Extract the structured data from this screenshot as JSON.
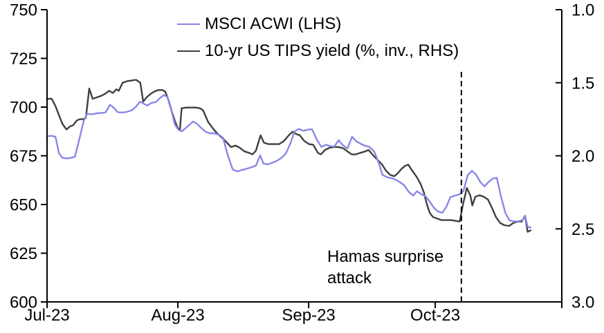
{
  "chart_data": {
    "type": "line",
    "title": "",
    "grid": false,
    "legend_position": "top-center",
    "x_axis": {
      "unit": "days since 1 Jul 2023",
      "range": [
        0,
        122
      ],
      "ticks": [
        {
          "day": 0,
          "label": "Jul-23"
        },
        {
          "day": 31,
          "label": "Aug-23"
        },
        {
          "day": 62,
          "label": "Sep-23"
        },
        {
          "day": 92,
          "label": "Oct-23"
        },
        {
          "day": 122,
          "label": ""
        }
      ]
    },
    "left_axis": {
      "range": [
        600,
        750
      ],
      "ticks": [
        750,
        725,
        700,
        675,
        650,
        625,
        600
      ]
    },
    "right_axis": {
      "range": [
        1.0,
        3.0
      ],
      "inverted": true,
      "ticks": [
        "1.0",
        "1.5",
        "2.0",
        "2.5",
        "3.0"
      ]
    },
    "series": [
      {
        "name": "MSCI ACWI (LHS)",
        "axis": "left",
        "color": "#8787e8",
        "points": [
          [
            0,
            685
          ],
          [
            1,
            685.3
          ],
          [
            2,
            684.8
          ],
          [
            2.8,
            676.5
          ],
          [
            3.6,
            674
          ],
          [
            4.8,
            673.6
          ],
          [
            5.7,
            674
          ],
          [
            6.6,
            674.5
          ],
          [
            7.7,
            684
          ],
          [
            8.7,
            693
          ],
          [
            9.5,
            696.5
          ],
          [
            10.7,
            696.3
          ],
          [
            11.8,
            696.8
          ],
          [
            13,
            697
          ],
          [
            13.9,
            697.3
          ],
          [
            14.9,
            701.2
          ],
          [
            15.9,
            699.5
          ],
          [
            16.7,
            697.4
          ],
          [
            17.9,
            697.2
          ],
          [
            19,
            697.6
          ],
          [
            20.2,
            698.5
          ],
          [
            21.2,
            700.5
          ],
          [
            22,
            702.8
          ],
          [
            23,
            701.6
          ],
          [
            23.8,
            700.8
          ],
          [
            24.8,
            702.2
          ],
          [
            25.8,
            702.6
          ],
          [
            26.7,
            704.5
          ],
          [
            27.7,
            706.2
          ],
          [
            28.5,
            705.2
          ],
          [
            29.5,
            698
          ],
          [
            30.3,
            691
          ],
          [
            31.2,
            688.2
          ],
          [
            32,
            687.6
          ],
          [
            33,
            689.5
          ],
          [
            33.8,
            691
          ],
          [
            34.6,
            692.6
          ],
          [
            35.6,
            691.3
          ],
          [
            36.6,
            689.2
          ],
          [
            37.6,
            687.3
          ],
          [
            38.5,
            686.6
          ],
          [
            39.7,
            686.5
          ],
          [
            40.7,
            685.8
          ],
          [
            41.7,
            684.3
          ],
          [
            42.8,
            675.5
          ],
          [
            44,
            668
          ],
          [
            45.1,
            667
          ],
          [
            46.3,
            667.8
          ],
          [
            47.4,
            668.4
          ],
          [
            48.6,
            669.2
          ],
          [
            49.5,
            670
          ],
          [
            50.5,
            675.2
          ],
          [
            51.3,
            671
          ],
          [
            52.3,
            670.6
          ],
          [
            53.5,
            671.5
          ],
          [
            54.6,
            672.6
          ],
          [
            55.6,
            674
          ],
          [
            56.6,
            676.2
          ],
          [
            57.6,
            681
          ],
          [
            58.7,
            687.6
          ],
          [
            59.7,
            688.8
          ],
          [
            60.7,
            687.8
          ],
          [
            61.8,
            688.4
          ],
          [
            62.8,
            688.6
          ],
          [
            64,
            683
          ],
          [
            65,
            679.6
          ],
          [
            66.1,
            680.6
          ],
          [
            67.1,
            680
          ],
          [
            68.1,
            679.8
          ],
          [
            69.1,
            683
          ],
          [
            70.2,
            680.2
          ],
          [
            71.2,
            678.8
          ],
          [
            72.3,
            684.8
          ],
          [
            73.3,
            682.4
          ],
          [
            74.5,
            681
          ],
          [
            75.4,
            680.1
          ],
          [
            76.4,
            679.6
          ],
          [
            77.6,
            677
          ],
          [
            78.6,
            671.5
          ],
          [
            79.5,
            665.2
          ],
          [
            80.7,
            663.9
          ],
          [
            81.7,
            663.5
          ],
          [
            82.7,
            662.6
          ],
          [
            83.6,
            661.5
          ],
          [
            84.6,
            660
          ],
          [
            85.8,
            656.3
          ],
          [
            86.8,
            654.6
          ],
          [
            87.7,
            656.8
          ],
          [
            88.7,
            655.3
          ],
          [
            89.7,
            654.3
          ],
          [
            90.7,
            651.5
          ],
          [
            91.7,
            648.3
          ],
          [
            92.7,
            646.3
          ],
          [
            93.7,
            645.8
          ],
          [
            94.6,
            648.6
          ],
          [
            95.6,
            653.8
          ],
          [
            96.8,
            654.6
          ],
          [
            97.7,
            655.2
          ],
          [
            98.7,
            657
          ],
          [
            99.7,
            665
          ],
          [
            100.7,
            667.3
          ],
          [
            101.7,
            665.3
          ],
          [
            102.7,
            661.5
          ],
          [
            103.7,
            659.3
          ],
          [
            104.6,
            661.5
          ],
          [
            105.6,
            663.3
          ],
          [
            106.6,
            663.7
          ],
          [
            107.6,
            654
          ],
          [
            108.6,
            645.8
          ],
          [
            109.6,
            641.8
          ],
          [
            110.7,
            641.3
          ],
          [
            111.7,
            641.4
          ],
          [
            112.7,
            642
          ],
          [
            113.3,
            644.3
          ],
          [
            113.9,
            638.5
          ],
          [
            114.6,
            638.2
          ]
        ]
      },
      {
        "name": "10-yr US TIPS yield (%, inv., RHS)",
        "axis": "right",
        "color": "#3f3f3f",
        "points": [
          [
            0,
            1.61
          ],
          [
            1.1,
            1.61
          ],
          [
            2,
            1.66
          ],
          [
            2.8,
            1.72
          ],
          [
            3.6,
            1.78
          ],
          [
            4.6,
            1.82
          ],
          [
            5.4,
            1.8
          ],
          [
            6.2,
            1.79
          ],
          [
            7,
            1.76
          ],
          [
            7.7,
            1.75
          ],
          [
            8.5,
            1.75
          ],
          [
            9.2,
            1.74
          ],
          [
            10,
            1.54
          ],
          [
            10.8,
            1.61
          ],
          [
            11.8,
            1.6
          ],
          [
            12.8,
            1.59
          ],
          [
            13.8,
            1.575
          ],
          [
            14.7,
            1.555
          ],
          [
            15.6,
            1.57
          ],
          [
            16.4,
            1.545
          ],
          [
            17,
            1.555
          ],
          [
            17.9,
            1.5
          ],
          [
            18.9,
            1.49
          ],
          [
            20,
            1.485
          ],
          [
            21.1,
            1.48
          ],
          [
            22.1,
            1.5
          ],
          [
            22.8,
            1.63
          ],
          [
            23.6,
            1.6
          ],
          [
            24.6,
            1.575
          ],
          [
            25.5,
            1.56
          ],
          [
            26.4,
            1.55
          ],
          [
            27.3,
            1.55
          ],
          [
            28,
            1.56
          ],
          [
            28.8,
            1.62
          ],
          [
            29.6,
            1.7
          ],
          [
            30.4,
            1.77
          ],
          [
            31,
            1.81
          ],
          [
            31.5,
            1.82
          ],
          [
            31.9,
            1.675
          ],
          [
            33,
            1.67
          ],
          [
            34.2,
            1.67
          ],
          [
            35.3,
            1.67
          ],
          [
            36.3,
            1.675
          ],
          [
            37,
            1.69
          ],
          [
            37.6,
            1.73
          ],
          [
            38.2,
            1.77
          ],
          [
            39,
            1.8
          ],
          [
            39.8,
            1.83
          ],
          [
            40.8,
            1.86
          ],
          [
            41.8,
            1.885
          ],
          [
            42.8,
            1.915
          ],
          [
            43.6,
            1.94
          ],
          [
            44.7,
            1.93
          ],
          [
            45.7,
            1.945
          ],
          [
            46.8,
            1.97
          ],
          [
            47.9,
            1.98
          ],
          [
            48.7,
            1.99
          ],
          [
            49.5,
            1.965
          ],
          [
            50.6,
            1.86
          ],
          [
            51.4,
            1.91
          ],
          [
            52.4,
            1.92
          ],
          [
            53.6,
            1.92
          ],
          [
            55,
            1.92
          ],
          [
            56.1,
            1.9
          ],
          [
            57.3,
            1.86
          ],
          [
            58.2,
            1.835
          ],
          [
            59,
            1.85
          ],
          [
            59.9,
            1.86
          ],
          [
            61,
            1.9
          ],
          [
            62.1,
            1.92
          ],
          [
            63.1,
            1.925
          ],
          [
            64.2,
            1.98
          ],
          [
            64.9,
            1.99
          ],
          [
            65.9,
            1.96
          ],
          [
            66.9,
            1.945
          ],
          [
            68,
            1.94
          ],
          [
            69.1,
            1.94
          ],
          [
            70.3,
            1.95
          ],
          [
            71.2,
            1.97
          ],
          [
            72.2,
            1.99
          ],
          [
            73.2,
            1.99
          ],
          [
            74.2,
            1.98
          ],
          [
            75.4,
            1.97
          ],
          [
            76.2,
            1.96
          ],
          [
            77.4,
            2.0
          ],
          [
            78.4,
            2.03
          ],
          [
            79.4,
            2.06
          ],
          [
            80.3,
            2.1
          ],
          [
            81.3,
            2.13
          ],
          [
            82.3,
            2.14
          ],
          [
            83.1,
            2.12
          ],
          [
            84,
            2.09
          ],
          [
            84.8,
            2.07
          ],
          [
            85.6,
            2.06
          ],
          [
            86.5,
            2.1
          ],
          [
            87.5,
            2.14
          ],
          [
            88.5,
            2.19
          ],
          [
            89.3,
            2.25
          ],
          [
            90,
            2.33
          ],
          [
            90.7,
            2.39
          ],
          [
            91.5,
            2.42
          ],
          [
            92.5,
            2.43
          ],
          [
            93.5,
            2.44
          ],
          [
            94.6,
            2.44
          ],
          [
            95.7,
            2.44
          ],
          [
            96.7,
            2.445
          ],
          [
            97.8,
            2.45
          ],
          [
            98.6,
            2.33
          ],
          [
            99.5,
            2.22
          ],
          [
            100.3,
            2.27
          ],
          [
            100.8,
            2.34
          ],
          [
            101.5,
            2.28
          ],
          [
            102.5,
            2.27
          ],
          [
            103.5,
            2.28
          ],
          [
            104.5,
            2.3
          ],
          [
            105.5,
            2.36
          ],
          [
            106.4,
            2.42
          ],
          [
            107.4,
            2.46
          ],
          [
            108.4,
            2.475
          ],
          [
            109.5,
            2.48
          ],
          [
            110.5,
            2.46
          ],
          [
            111.5,
            2.45
          ],
          [
            112.5,
            2.45
          ],
          [
            113.3,
            2.41
          ],
          [
            113.9,
            2.52
          ],
          [
            114.6,
            2.51
          ]
        ]
      }
    ],
    "annotation": {
      "lines": [
        "Hamas surprise",
        "attack"
      ],
      "event_line": {
        "style": "dashed",
        "x_day": 98.2,
        "color": "#000000"
      }
    }
  },
  "colors": {
    "axis": "#000000",
    "text": "#000000",
    "background": "#ffffff"
  }
}
